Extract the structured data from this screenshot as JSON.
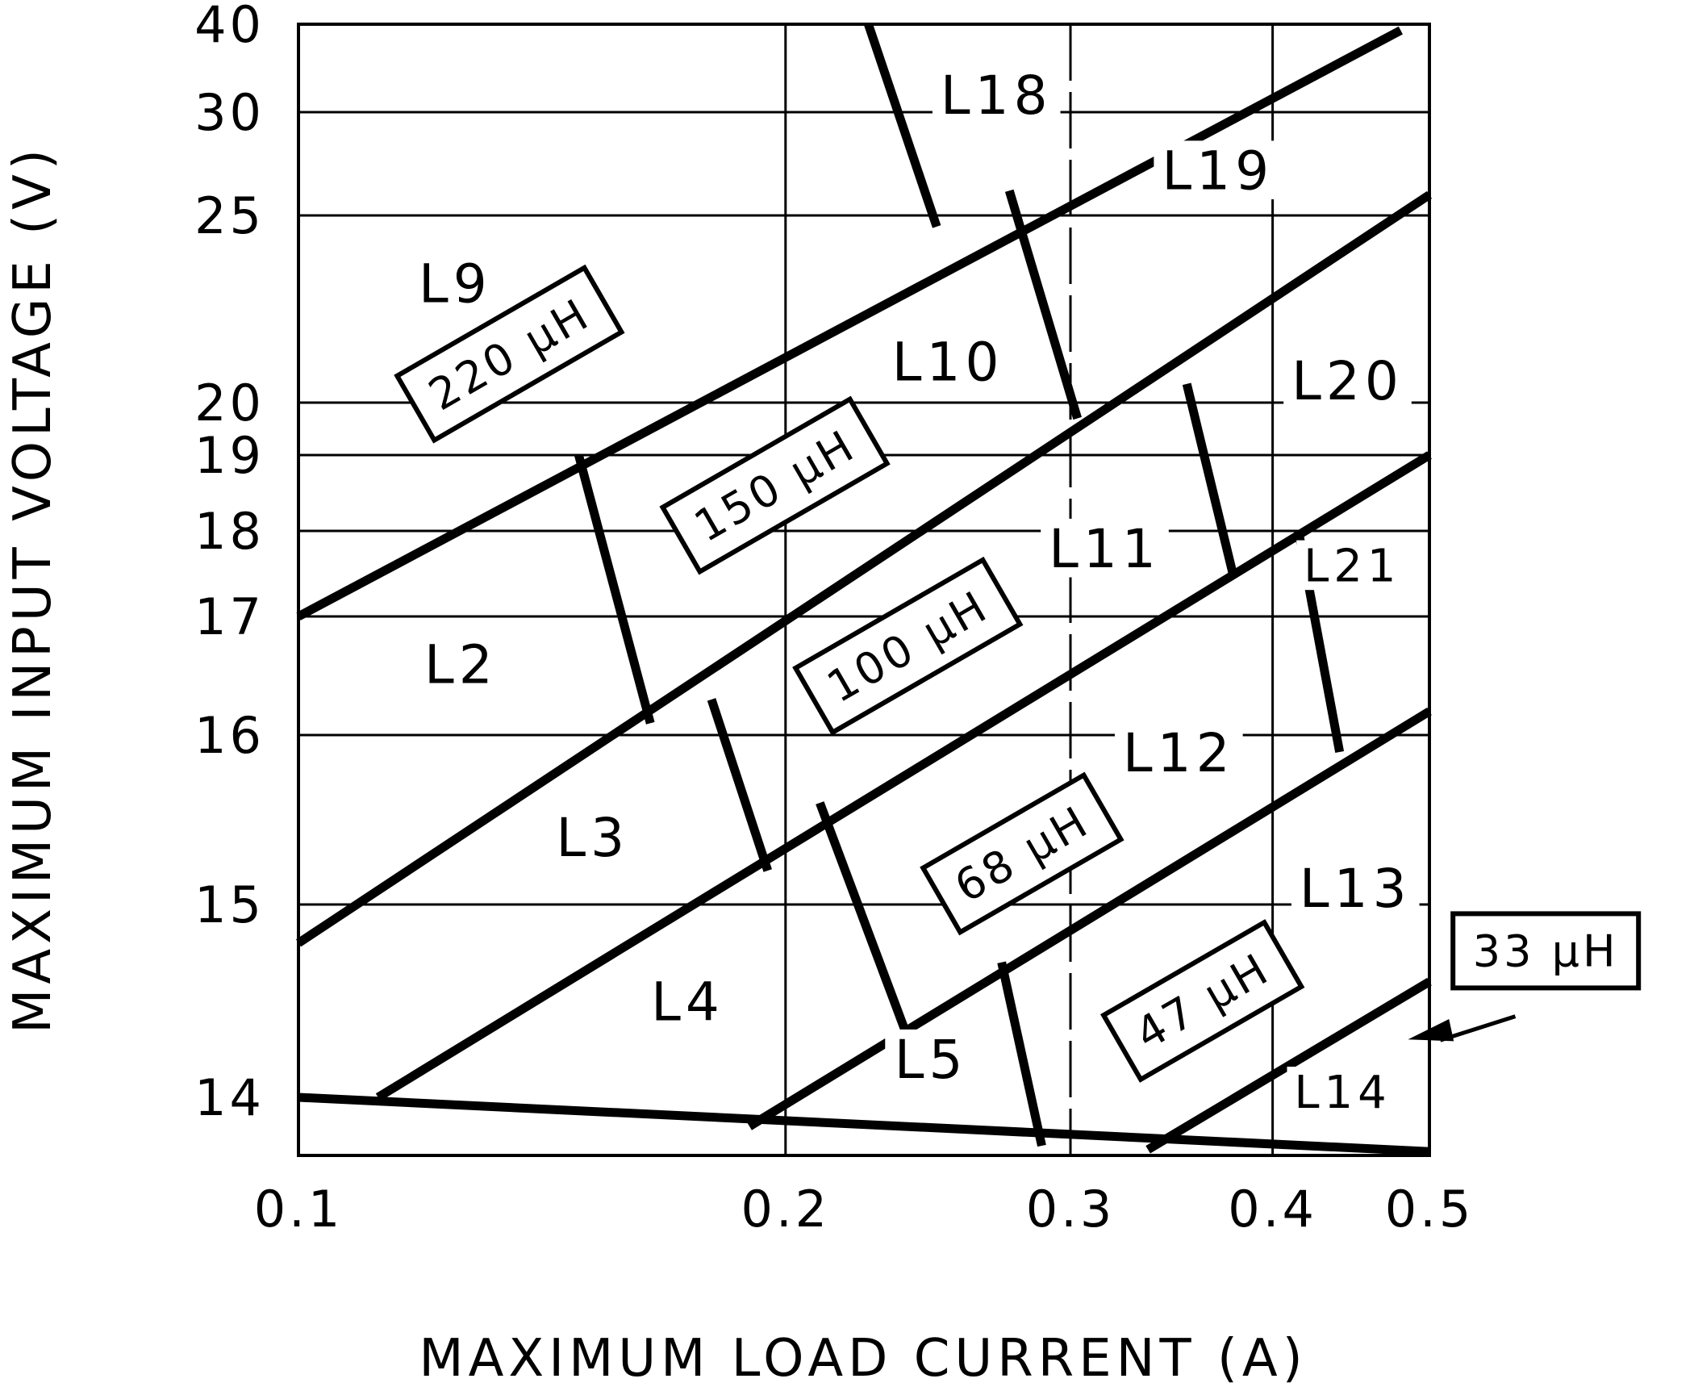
{
  "chart_data": {
    "type": "line",
    "title": "",
    "xlabel": "MAXIMUM LOAD CURRENT (A)",
    "ylabel": "MAXIMUM INPUT VOLTAGE (V)",
    "xlim": [
      0.1,
      0.5
    ],
    "ylim": [
      13.7,
      40
    ],
    "x_ticks": [
      {
        "value": 0.1,
        "label": "0.1"
      },
      {
        "value": 0.2,
        "label": "0.2"
      },
      {
        "value": 0.3,
        "label": "0.3"
      },
      {
        "value": 0.4,
        "label": "0.4"
      },
      {
        "value": 0.5,
        "label": "0.5"
      }
    ],
    "y_ticks": [
      {
        "value": 14,
        "label": "14"
      },
      {
        "value": 15,
        "label": "15"
      },
      {
        "value": 16,
        "label": "16"
      },
      {
        "value": 17,
        "label": "17"
      },
      {
        "value": 18,
        "label": "18"
      },
      {
        "value": 19,
        "label": "19"
      },
      {
        "value": 20,
        "label": "20"
      },
      {
        "value": 25,
        "label": "25"
      },
      {
        "value": 30,
        "label": "30"
      },
      {
        "value": 40,
        "label": "40"
      }
    ],
    "grid_y": [
      15,
      16,
      17,
      18,
      19,
      20,
      25,
      30
    ],
    "grid_x": [
      0.2,
      0.3,
      0.4
    ],
    "series": [
      {
        "name": "220 µH",
        "x": [
          0.1,
          0.48
        ],
        "y": [
          17,
          39.3
        ]
      },
      {
        "name": "150 µH",
        "x": [
          0.1,
          0.5
        ],
        "y": [
          14.8,
          26
        ]
      },
      {
        "name": "100 µH",
        "x": [
          0.112,
          0.5
        ],
        "y": [
          14,
          19
        ]
      },
      {
        "name": "68 µH",
        "x": [
          0.19,
          0.5
        ],
        "y": [
          13.85,
          16.2
        ]
      },
      {
        "name": "47 µH",
        "x": [
          0.335,
          0.5
        ],
        "y": [
          13.73,
          14.6
        ]
      },
      {
        "name": "",
        "x": [
          0.1,
          0.5
        ],
        "y": [
          14,
          13.72
        ]
      }
    ],
    "dividers": [
      {
        "x": [
          0.225,
          0.248
        ],
        "y": [
          40,
          24.7
        ]
      },
      {
        "x": [
          0.275,
          0.303
        ],
        "y": [
          26.2,
          19.7
        ]
      },
      {
        "x": [
          0.149,
          0.165
        ],
        "y": [
          19,
          16.1
        ]
      },
      {
        "x": [
          0.18,
          0.195
        ],
        "y": [
          16.3,
          15.2
        ]
      },
      {
        "x": [
          0.354,
          0.378
        ],
        "y": [
          20.5,
          17.5
        ]
      },
      {
        "x": [
          0.21,
          0.237
        ],
        "y": [
          15.6,
          14.35
        ]
      },
      {
        "x": [
          0.415,
          0.44
        ],
        "y": [
          18,
          15.9
        ]
      },
      {
        "x": [
          0.272,
          0.288
        ],
        "y": [
          14.7,
          13.75
        ]
      }
    ],
    "regions": [
      {
        "label": "L9",
        "x": 0.125,
        "y": 23.2
      },
      {
        "label": "L18",
        "x": 0.27,
        "y": 32
      },
      {
        "label": "L19",
        "x": 0.37,
        "y": 27.2
      },
      {
        "label": "L10",
        "x": 0.252,
        "y": 21.1
      },
      {
        "label": "L20",
        "x": 0.445,
        "y": 20.6
      },
      {
        "label": "L2",
        "x": 0.126,
        "y": 16.6
      },
      {
        "label": "L11",
        "x": 0.315,
        "y": 17.8
      },
      {
        "label": "L21",
        "x": 0.448,
        "y": 17.6
      },
      {
        "label": "L3",
        "x": 0.152,
        "y": 15.4
      },
      {
        "label": "L12",
        "x": 0.35,
        "y": 15.9
      },
      {
        "label": "L13",
        "x": 0.45,
        "y": 15.1
      },
      {
        "label": "L4",
        "x": 0.174,
        "y": 14.5
      },
      {
        "label": "L5",
        "x": 0.246,
        "y": 14.2
      },
      {
        "label": "L14",
        "x": 0.442,
        "y": 14.03
      }
    ],
    "inductance_labels": [
      {
        "label": "220 µH",
        "x": 0.135,
        "y": 21.3
      },
      {
        "label": "150 µH",
        "x": 0.197,
        "y": 18.6
      },
      {
        "label": "100 µH",
        "x": 0.238,
        "y": 16.75
      },
      {
        "label": "68 µH",
        "x": 0.28,
        "y": 15.3
      },
      {
        "label": "47 µH",
        "x": 0.362,
        "y": 14.5
      },
      {
        "label": "33 µH",
        "x": 0.59,
        "y": 14.76
      }
    ],
    "annotation_arrow": {
      "from": {
        "x": 0.565,
        "y": 14.42
      },
      "to": {
        "x": 0.485,
        "y": 14.3
      },
      "label": "33 µH"
    }
  }
}
